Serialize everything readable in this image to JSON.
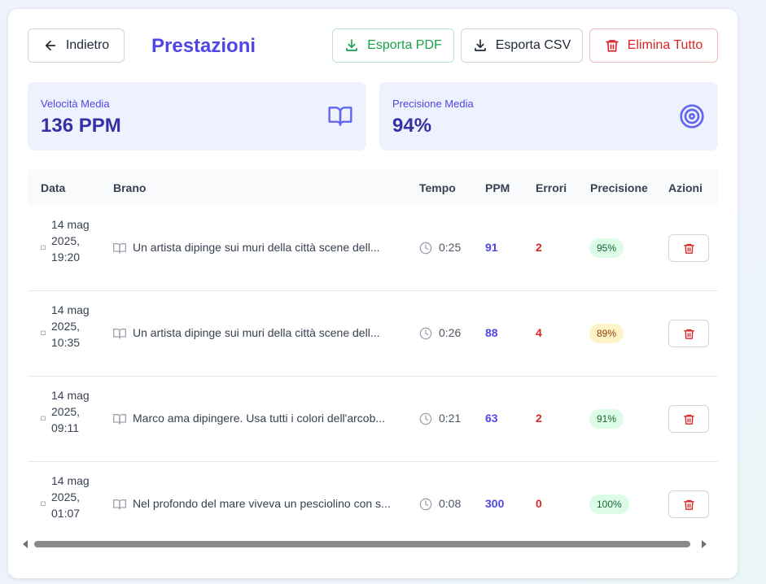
{
  "header": {
    "back_label": "Indietro",
    "title": "Prestazioni",
    "export_pdf_label": "Esporta PDF",
    "export_csv_label": "Esporta CSV",
    "delete_all_label": "Elimina Tutto"
  },
  "stats": {
    "speed_label": "Velocità Media",
    "speed_value": "136 PPM",
    "accuracy_label": "Precisione Media",
    "accuracy_value": "94%"
  },
  "table": {
    "headers": {
      "date": "Data",
      "passage": "Brano",
      "time": "Tempo",
      "ppm": "PPM",
      "errors": "Errori",
      "accuracy": "Precisione",
      "actions": "Azioni"
    },
    "rows": [
      {
        "date": "14 mag 2025, 19:20",
        "passage": "Un artista dipinge sui muri della città scene dell...",
        "time": "0:25",
        "ppm": "91",
        "errors": "2",
        "accuracy": "95%"
      },
      {
        "date": "14 mag 2025, 10:35",
        "passage": "Un artista dipinge sui muri della città scene dell...",
        "time": "0:26",
        "ppm": "88",
        "errors": "4",
        "accuracy": "89%"
      },
      {
        "date": "14 mag 2025, 09:11",
        "passage": "Marco ama dipingere. Usa tutti i colori dell'arcob...",
        "time": "0:21",
        "ppm": "63",
        "errors": "2",
        "accuracy": "91%"
      },
      {
        "date": "14 mag 2025, 01:07",
        "passage": "Nel profondo del mare viveva un pesciolino con s...",
        "time": "0:08",
        "ppm": "300",
        "errors": "0",
        "accuracy": "100%"
      }
    ]
  },
  "colors": {
    "accent": "#4f46e5",
    "success": "#16a34a",
    "danger": "#dc2626",
    "warning_badge": "#fef3c7",
    "success_badge": "#dcfce7"
  },
  "icons": {
    "back": "arrow-left-icon",
    "export_pdf": "download-icon",
    "export_csv": "download-icon",
    "delete_all": "trash-icon",
    "speed": "book-open-icon",
    "accuracy": "target-icon",
    "date": "calendar-icon",
    "passage": "book-open-icon",
    "time": "clock-icon",
    "row_delete": "trash-icon"
  }
}
